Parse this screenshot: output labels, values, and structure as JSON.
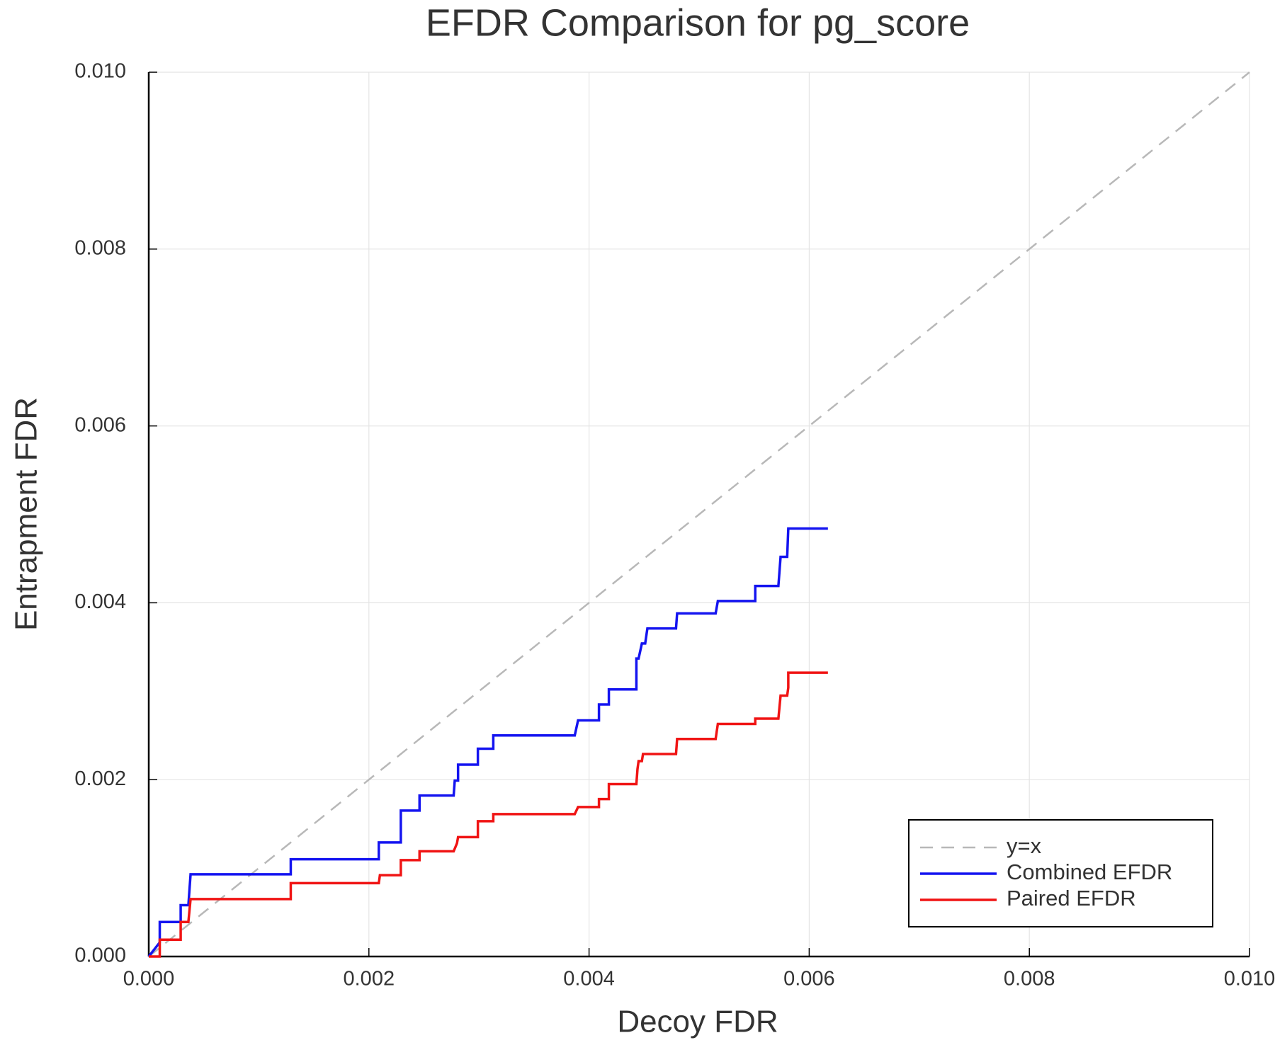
{
  "chart_data": {
    "type": "line",
    "title": "EFDR Comparison for pg_score",
    "x_label": "Decoy FDR",
    "y_label": "Entrapment FDR",
    "xlim": [
      0,
      0.01
    ],
    "ylim": [
      0,
      0.01
    ],
    "xticks": [
      {
        "value": 0,
        "label": "0.000"
      },
      {
        "value": 0.002,
        "label": "0.002"
      },
      {
        "value": 0.004,
        "label": "0.004"
      },
      {
        "value": 0.006,
        "label": "0.006"
      },
      {
        "value": 0.008,
        "label": "0.008"
      },
      {
        "value": 0.01,
        "label": "0.010"
      }
    ],
    "yticks": [
      {
        "value": 0,
        "label": "0.000"
      },
      {
        "value": 0.002,
        "label": "0.002"
      },
      {
        "value": 0.004,
        "label": "0.004"
      },
      {
        "value": 0.006,
        "label": "0.006"
      },
      {
        "value": 0.008,
        "label": "0.008"
      },
      {
        "value": 0.01,
        "label": "0.010"
      }
    ],
    "grid": true,
    "legend_position": "lower-right",
    "series": [
      {
        "name": "y=x",
        "color": "#b8b8b8",
        "dashed": true,
        "x": [
          0,
          0.01
        ],
        "values": [
          0,
          0.01
        ]
      },
      {
        "name": "Combined EFDR",
        "color": "#1414f0",
        "dashed": false,
        "x": [
          0,
          0.0001,
          0.0001,
          0.00029,
          0.00029,
          0.00036,
          0.00038,
          0.00129,
          0.00129,
          0.00209,
          0.00209,
          0.00229,
          0.00229,
          0.00246,
          0.00246,
          0.00277,
          0.00278,
          0.00281,
          0.00281,
          0.00299,
          0.00299,
          0.00313,
          0.00313,
          0.00387,
          0.0039,
          0.00409,
          0.00409,
          0.00418,
          0.00418,
          0.00443,
          0.00443,
          0.00443,
          0.00445,
          0.00448,
          0.00451,
          0.00453,
          0.00479,
          0.0048,
          0.00515,
          0.00517,
          0.00551,
          0.00551,
          0.00572,
          0.00574,
          0.0058,
          0.00581,
          0.00617
        ],
        "values": [
          0,
          0.00016,
          0.00039,
          0.00039,
          0.00058,
          0.00058,
          0.00093,
          0.00093,
          0.0011,
          0.0011,
          0.00129,
          0.00129,
          0.00165,
          0.00165,
          0.00182,
          0.00182,
          0.00199,
          0.00199,
          0.00217,
          0.00217,
          0.00235,
          0.00235,
          0.0025,
          0.0025,
          0.00267,
          0.00267,
          0.00285,
          0.00285,
          0.00302,
          0.00302,
          0.00319,
          0.00337,
          0.00337,
          0.00354,
          0.00354,
          0.00371,
          0.00371,
          0.00388,
          0.00388,
          0.00402,
          0.00402,
          0.00419,
          0.00419,
          0.00452,
          0.00452,
          0.00484,
          0.00484
        ]
      },
      {
        "name": "Paired EFDR",
        "color": "#f01414",
        "dashed": false,
        "x": [
          0,
          0.0001,
          0.0001,
          0.00029,
          0.00029,
          0.00036,
          0.00038,
          0.00129,
          0.00129,
          0.00209,
          0.0021,
          0.00229,
          0.00229,
          0.00246,
          0.00246,
          0.00277,
          0.0028,
          0.00281,
          0.00299,
          0.00299,
          0.00313,
          0.00313,
          0.00387,
          0.0039,
          0.00409,
          0.00409,
          0.00418,
          0.00418,
          0.00443,
          0.00444,
          0.00445,
          0.00448,
          0.00449,
          0.00453,
          0.00479,
          0.0048,
          0.00515,
          0.00517,
          0.00551,
          0.00551,
          0.00572,
          0.00574,
          0.0058,
          0.00581,
          0.00581,
          0.00617
        ],
        "values": [
          0,
          0,
          0.00019,
          0.00019,
          0.00039,
          0.00039,
          0.00065,
          0.00065,
          0.00083,
          0.00083,
          0.00092,
          0.00092,
          0.00109,
          0.00109,
          0.00119,
          0.00119,
          0.00128,
          0.00135,
          0.00135,
          0.00153,
          0.00153,
          0.00161,
          0.00161,
          0.00169,
          0.00169,
          0.00178,
          0.00178,
          0.00195,
          0.00195,
          0.00212,
          0.00221,
          0.00221,
          0.00229,
          0.00229,
          0.00229,
          0.00246,
          0.00246,
          0.00263,
          0.00263,
          0.00269,
          0.00269,
          0.00295,
          0.00295,
          0.00304,
          0.00321,
          0.00321
        ]
      }
    ]
  }
}
